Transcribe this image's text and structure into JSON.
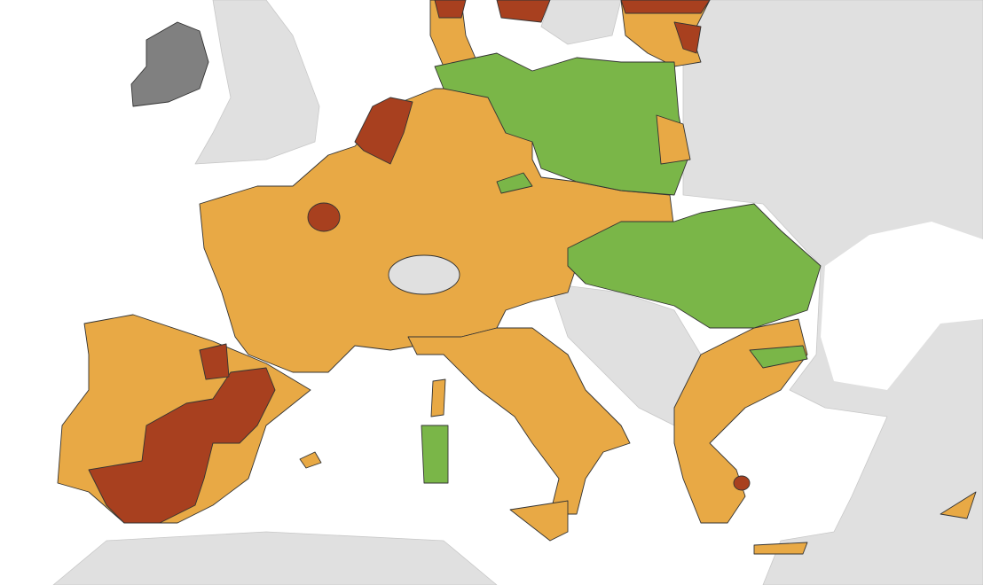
{
  "map": {
    "fills": [
      "#e8a945",
      "#7ab648",
      "#a8401f",
      "#808080",
      "#e0e0e0",
      "#ffffff"
    ]
  }
}
